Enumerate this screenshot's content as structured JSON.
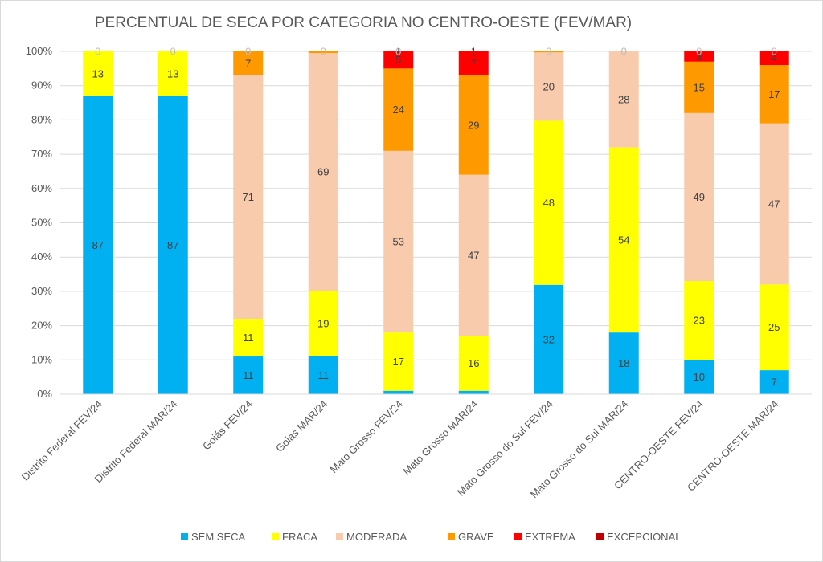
{
  "chart_data": {
    "type": "bar",
    "stacked": true,
    "percent_stacked": true,
    "title": "PERCENTUAL DE SECA POR CATEGORIA NO CENTRO-OESTE (FEV/MAR)",
    "xlabel": "",
    "ylabel": "",
    "ylim": [
      0,
      100
    ],
    "yticks": [
      "0%",
      "10%",
      "20%",
      "30%",
      "40%",
      "50%",
      "60%",
      "70%",
      "80%",
      "90%",
      "100%"
    ],
    "categories": [
      "Distrito Federal FEV/24",
      "Distrito Federal MAR/24",
      "Goiás FEV/24",
      "Goiás MAR/24",
      "Mato Grosso FEV/24",
      "Mato Grosso MAR/24",
      "Mato Grosso do Sul FEV/24",
      "Mato Grosso do Sul MAR/24",
      "CENTRO-OESTE FEV/24",
      "CENTRO-OESTE MAR/24"
    ],
    "series": [
      {
        "name": "SEM SECA",
        "color": "#00b0f0",
        "label_color": "#404040",
        "values": [
          87,
          87,
          11,
          11,
          1,
          1,
          32,
          18,
          10,
          7
        ]
      },
      {
        "name": "FRACA",
        "color": "#ffff00",
        "label_color": "#404040",
        "values": [
          13,
          13,
          11,
          19,
          17,
          16,
          48,
          54,
          23,
          25
        ]
      },
      {
        "name": "MODERADA",
        "color": "#f8cbad",
        "label_color": "#404040",
        "values": [
          0,
          0,
          71,
          69,
          53,
          47,
          20,
          28,
          49,
          47
        ]
      },
      {
        "name": "GRAVE",
        "color": "#ff9900",
        "label_color": "#404040",
        "values": [
          0,
          0,
          7,
          0.5,
          24,
          29,
          0.3,
          0,
          15,
          17
        ]
      },
      {
        "name": "EXTREMA",
        "color": "#ff0000",
        "label_color": "#404040",
        "values": [
          0,
          0,
          0,
          0,
          5,
          7,
          0,
          0,
          3,
          4
        ]
      },
      {
        "name": "EXCEPCIONAL",
        "color": "#c00000",
        "label_color": "#404040",
        "values": [
          0,
          0,
          0,
          0,
          0,
          0,
          0,
          0,
          0,
          0
        ]
      }
    ],
    "data_labels": [
      [
        "87",
        "13",
        "0",
        "",
        "",
        ""
      ],
      [
        "87",
        "13",
        "0",
        "",
        "",
        ""
      ],
      [
        "11",
        "11",
        "71",
        "7",
        "0",
        ""
      ],
      [
        "11",
        "19",
        "69",
        "0",
        "",
        ""
      ],
      [
        "1",
        "17",
        "53",
        "24",
        "5",
        "0"
      ],
      [
        "1",
        "16",
        "47",
        "29",
        "7",
        ""
      ],
      [
        "32",
        "48",
        "20",
        "0",
        "",
        ""
      ],
      [
        "18",
        "54",
        "28",
        "0",
        "0",
        ""
      ],
      [
        "10",
        "23",
        "49",
        "15",
        "3",
        "0"
      ],
      [
        "7",
        "25",
        "47",
        "17",
        "4",
        "0"
      ]
    ],
    "legend_position": "bottom",
    "grid": true
  }
}
